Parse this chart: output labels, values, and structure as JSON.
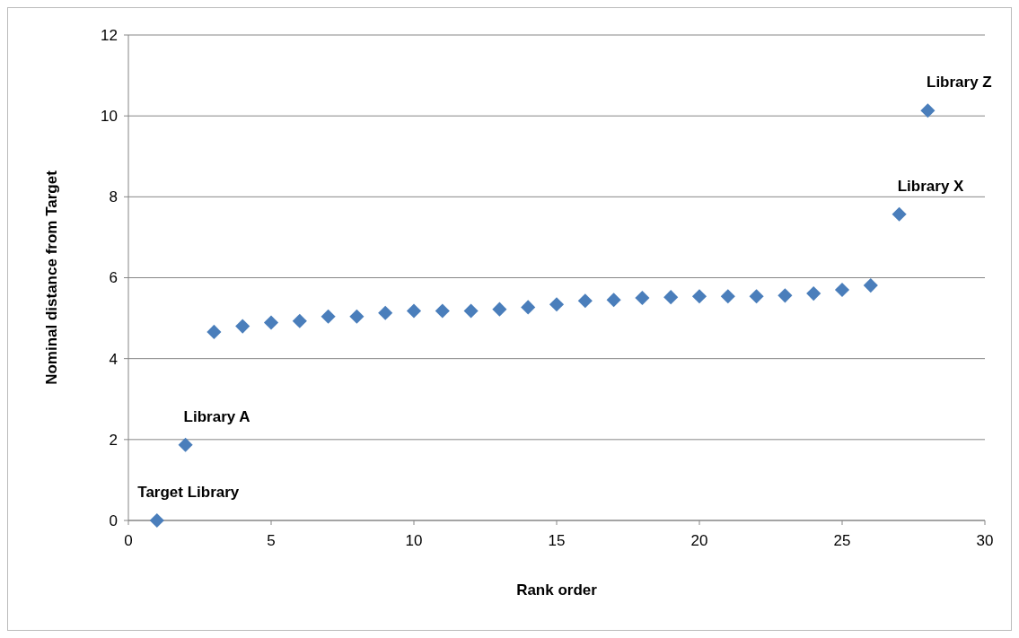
{
  "chart_data": {
    "type": "scatter",
    "xlabel": "Rank order",
    "ylabel": "Nominal distance from Target",
    "x": [
      1,
      2,
      3,
      4,
      5,
      6,
      7,
      8,
      9,
      10,
      11,
      12,
      13,
      14,
      15,
      16,
      17,
      18,
      19,
      20,
      21,
      22,
      23,
      24,
      25,
      26,
      27,
      28
    ],
    "series": [
      {
        "color": "#4a7ebb",
        "values": [
          0,
          1.87,
          4.66,
          4.8,
          4.89,
          4.93,
          5.04,
          5.04,
          5.13,
          5.18,
          5.18,
          5.18,
          5.22,
          5.27,
          5.34,
          5.43,
          5.45,
          5.5,
          5.52,
          5.54,
          5.54,
          5.54,
          5.56,
          5.61,
          5.7,
          5.81,
          7.57,
          10.13
        ]
      }
    ],
    "xlim": [
      0,
      30
    ],
    "xticks": [
      0,
      5,
      10,
      15,
      20,
      25,
      30
    ],
    "ylim": [
      0,
      12
    ],
    "yticks": [
      0,
      2,
      4,
      6,
      8,
      10,
      12
    ],
    "grid": "y",
    "marker": "diamond",
    "annotations": [
      {
        "text": "Target Library",
        "x": 1,
        "y": 0
      },
      {
        "text": "Library A",
        "x": 2,
        "y": 1.87
      },
      {
        "text": "Library X",
        "x": 27,
        "y": 7.57
      },
      {
        "text": "Library Z",
        "x": 28,
        "y": 10.13
      }
    ]
  }
}
